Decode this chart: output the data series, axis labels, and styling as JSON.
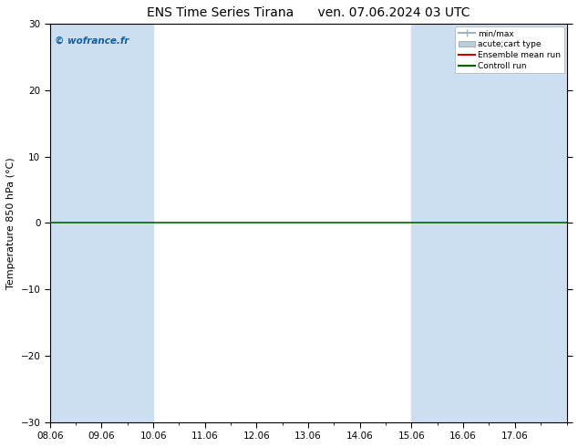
{
  "title": "ENS Time Series Tirana      ven. 07.06.2024 03 UTC",
  "ylabel": "Temperature 850 hPa (°C)",
  "ylim": [
    -30,
    30
  ],
  "yticks": [
    -30,
    -20,
    -10,
    0,
    10,
    20,
    30
  ],
  "xlim": [
    0,
    10
  ],
  "xtick_labels": [
    "08.06",
    "09.06",
    "10.06",
    "11.06",
    "12.06",
    "13.06",
    "14.06",
    "15.06",
    "16.06",
    "17.06"
  ],
  "xtick_positions": [
    0,
    1,
    2,
    3,
    4,
    5,
    6,
    7,
    8,
    9
  ],
  "blue_bands": [
    [
      0,
      1
    ],
    [
      1,
      2
    ],
    [
      7,
      8
    ],
    [
      8,
      9
    ],
    [
      9,
      10
    ]
  ],
  "blue_band_color": "#ccdff0",
  "watermark": "© wofrance.fr",
  "legend_items": [
    {
      "label": "min/max",
      "color": "#a0b4c0",
      "type": "line_with_cap"
    },
    {
      "label": "acute;cart type",
      "color": "#bccdd8",
      "type": "box"
    },
    {
      "label": "Ensemble mean run",
      "color": "#cc0000",
      "type": "line"
    },
    {
      "label": "Controll run",
      "color": "#006600",
      "type": "line"
    }
  ],
  "zero_line_color": "#006600",
  "axis_bg_color": "#ffffff",
  "fig_bg_color": "#ffffff",
  "title_fontsize": 10,
  "label_fontsize": 8,
  "tick_fontsize": 7.5
}
